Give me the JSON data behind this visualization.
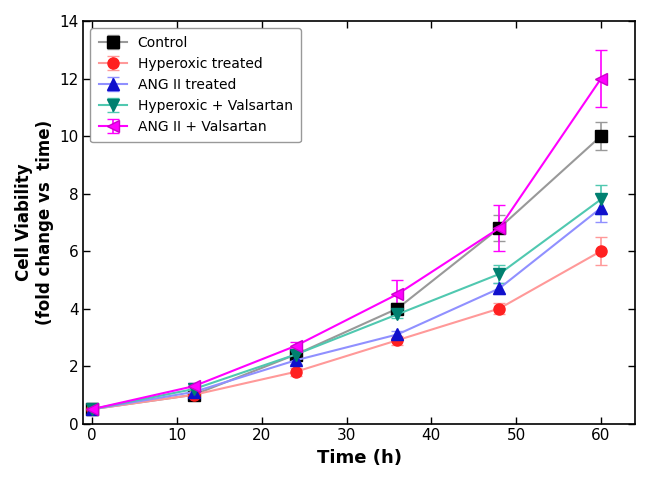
{
  "x": [
    0,
    12,
    24,
    36,
    48,
    60
  ],
  "series": [
    {
      "label": "Control",
      "line_color": "#999999",
      "marker": "s",
      "marker_facecolor": "#000000",
      "marker_edgecolor": "#000000",
      "y": [
        0.5,
        1.0,
        2.4,
        4.0,
        6.8,
        10.0
      ],
      "yerr": [
        0.05,
        0.08,
        0.15,
        0.2,
        0.45,
        0.5
      ]
    },
    {
      "label": "Hyperoxic treated",
      "line_color": "#FF9999",
      "marker": "o",
      "marker_facecolor": "#FF2020",
      "marker_edgecolor": "#FF2020",
      "y": [
        0.5,
        1.0,
        1.8,
        2.9,
        4.0,
        6.0
      ],
      "yerr": [
        0.05,
        0.08,
        0.15,
        0.15,
        0.2,
        0.5
      ]
    },
    {
      "label": "ANG II treated",
      "line_color": "#9090FF",
      "marker": "^",
      "marker_facecolor": "#1010CC",
      "marker_edgecolor": "#1010CC",
      "y": [
        0.5,
        1.1,
        2.2,
        3.1,
        4.7,
        7.5
      ],
      "yerr": [
        0.05,
        0.08,
        0.12,
        0.12,
        0.2,
        0.5
      ]
    },
    {
      "label": "Hyperoxic + Valsartan",
      "line_color": "#50C8B0",
      "marker": "v",
      "marker_facecolor": "#008070",
      "marker_edgecolor": "#008070",
      "y": [
        0.5,
        1.2,
        2.4,
        3.8,
        5.2,
        7.8
      ],
      "yerr": [
        0.05,
        0.1,
        0.1,
        0.12,
        0.3,
        0.5
      ]
    },
    {
      "label": "ANG II + Valsartan",
      "line_color": "#FF00FF",
      "marker": "<",
      "marker_facecolor": "#FF00FF",
      "marker_edgecolor": "#CC00CC",
      "y": [
        0.5,
        1.3,
        2.7,
        4.5,
        6.8,
        12.0
      ],
      "yerr": [
        0.05,
        0.1,
        0.15,
        0.5,
        0.8,
        1.0
      ]
    }
  ],
  "xlabel": "Time (h)",
  "ylabel": "Cell Viability\n(fold change vs  time)",
  "xlim": [
    -1,
    64
  ],
  "ylim": [
    0,
    14
  ],
  "xticks": [
    0,
    10,
    20,
    30,
    40,
    50,
    60
  ],
  "yticks": [
    0,
    2,
    4,
    6,
    8,
    10,
    12,
    14
  ],
  "legend_loc": "upper left",
  "figsize": [
    6.5,
    4.82
  ],
  "dpi": 100
}
